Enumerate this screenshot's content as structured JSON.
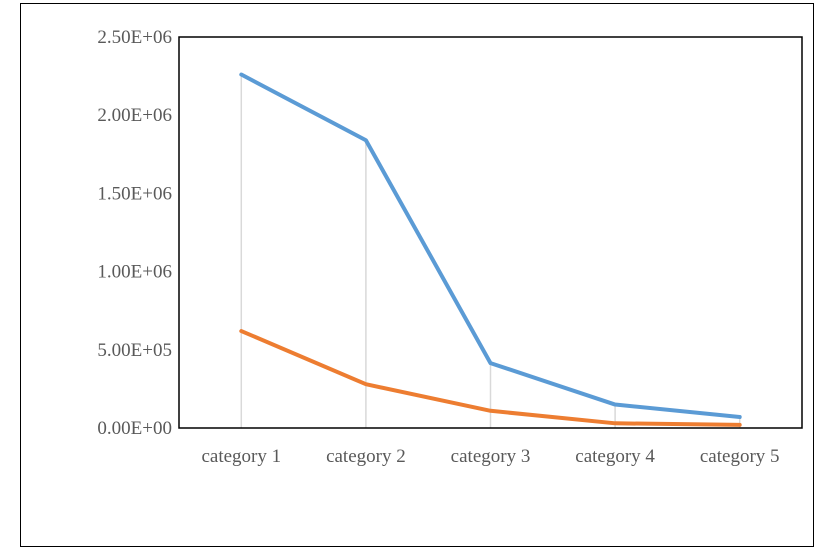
{
  "chart_data": {
    "type": "line",
    "title": "",
    "xlabel": "",
    "ylabel": "",
    "categories": [
      "category 1",
      "category 2",
      "category 3",
      "category 4",
      "category 5"
    ],
    "ylim": [
      0,
      2500000
    ],
    "y_ticks": [
      0,
      500000,
      1000000,
      1500000,
      2000000,
      2500000
    ],
    "y_tick_labels": [
      "0.00E+00",
      "5.00E+05",
      "1.00E+06",
      "1.50E+06",
      "2.00E+06",
      "2.50E+06"
    ],
    "grid": "vertical drop lines",
    "legend": "none",
    "series": [
      {
        "values": [
          2260000,
          1840000,
          415000,
          150000,
          70000
        ],
        "color": "#5B9BD5"
      },
      {
        "values": [
          620000,
          280000,
          110000,
          30000,
          20000
        ],
        "color": "#ED7D31"
      }
    ]
  }
}
